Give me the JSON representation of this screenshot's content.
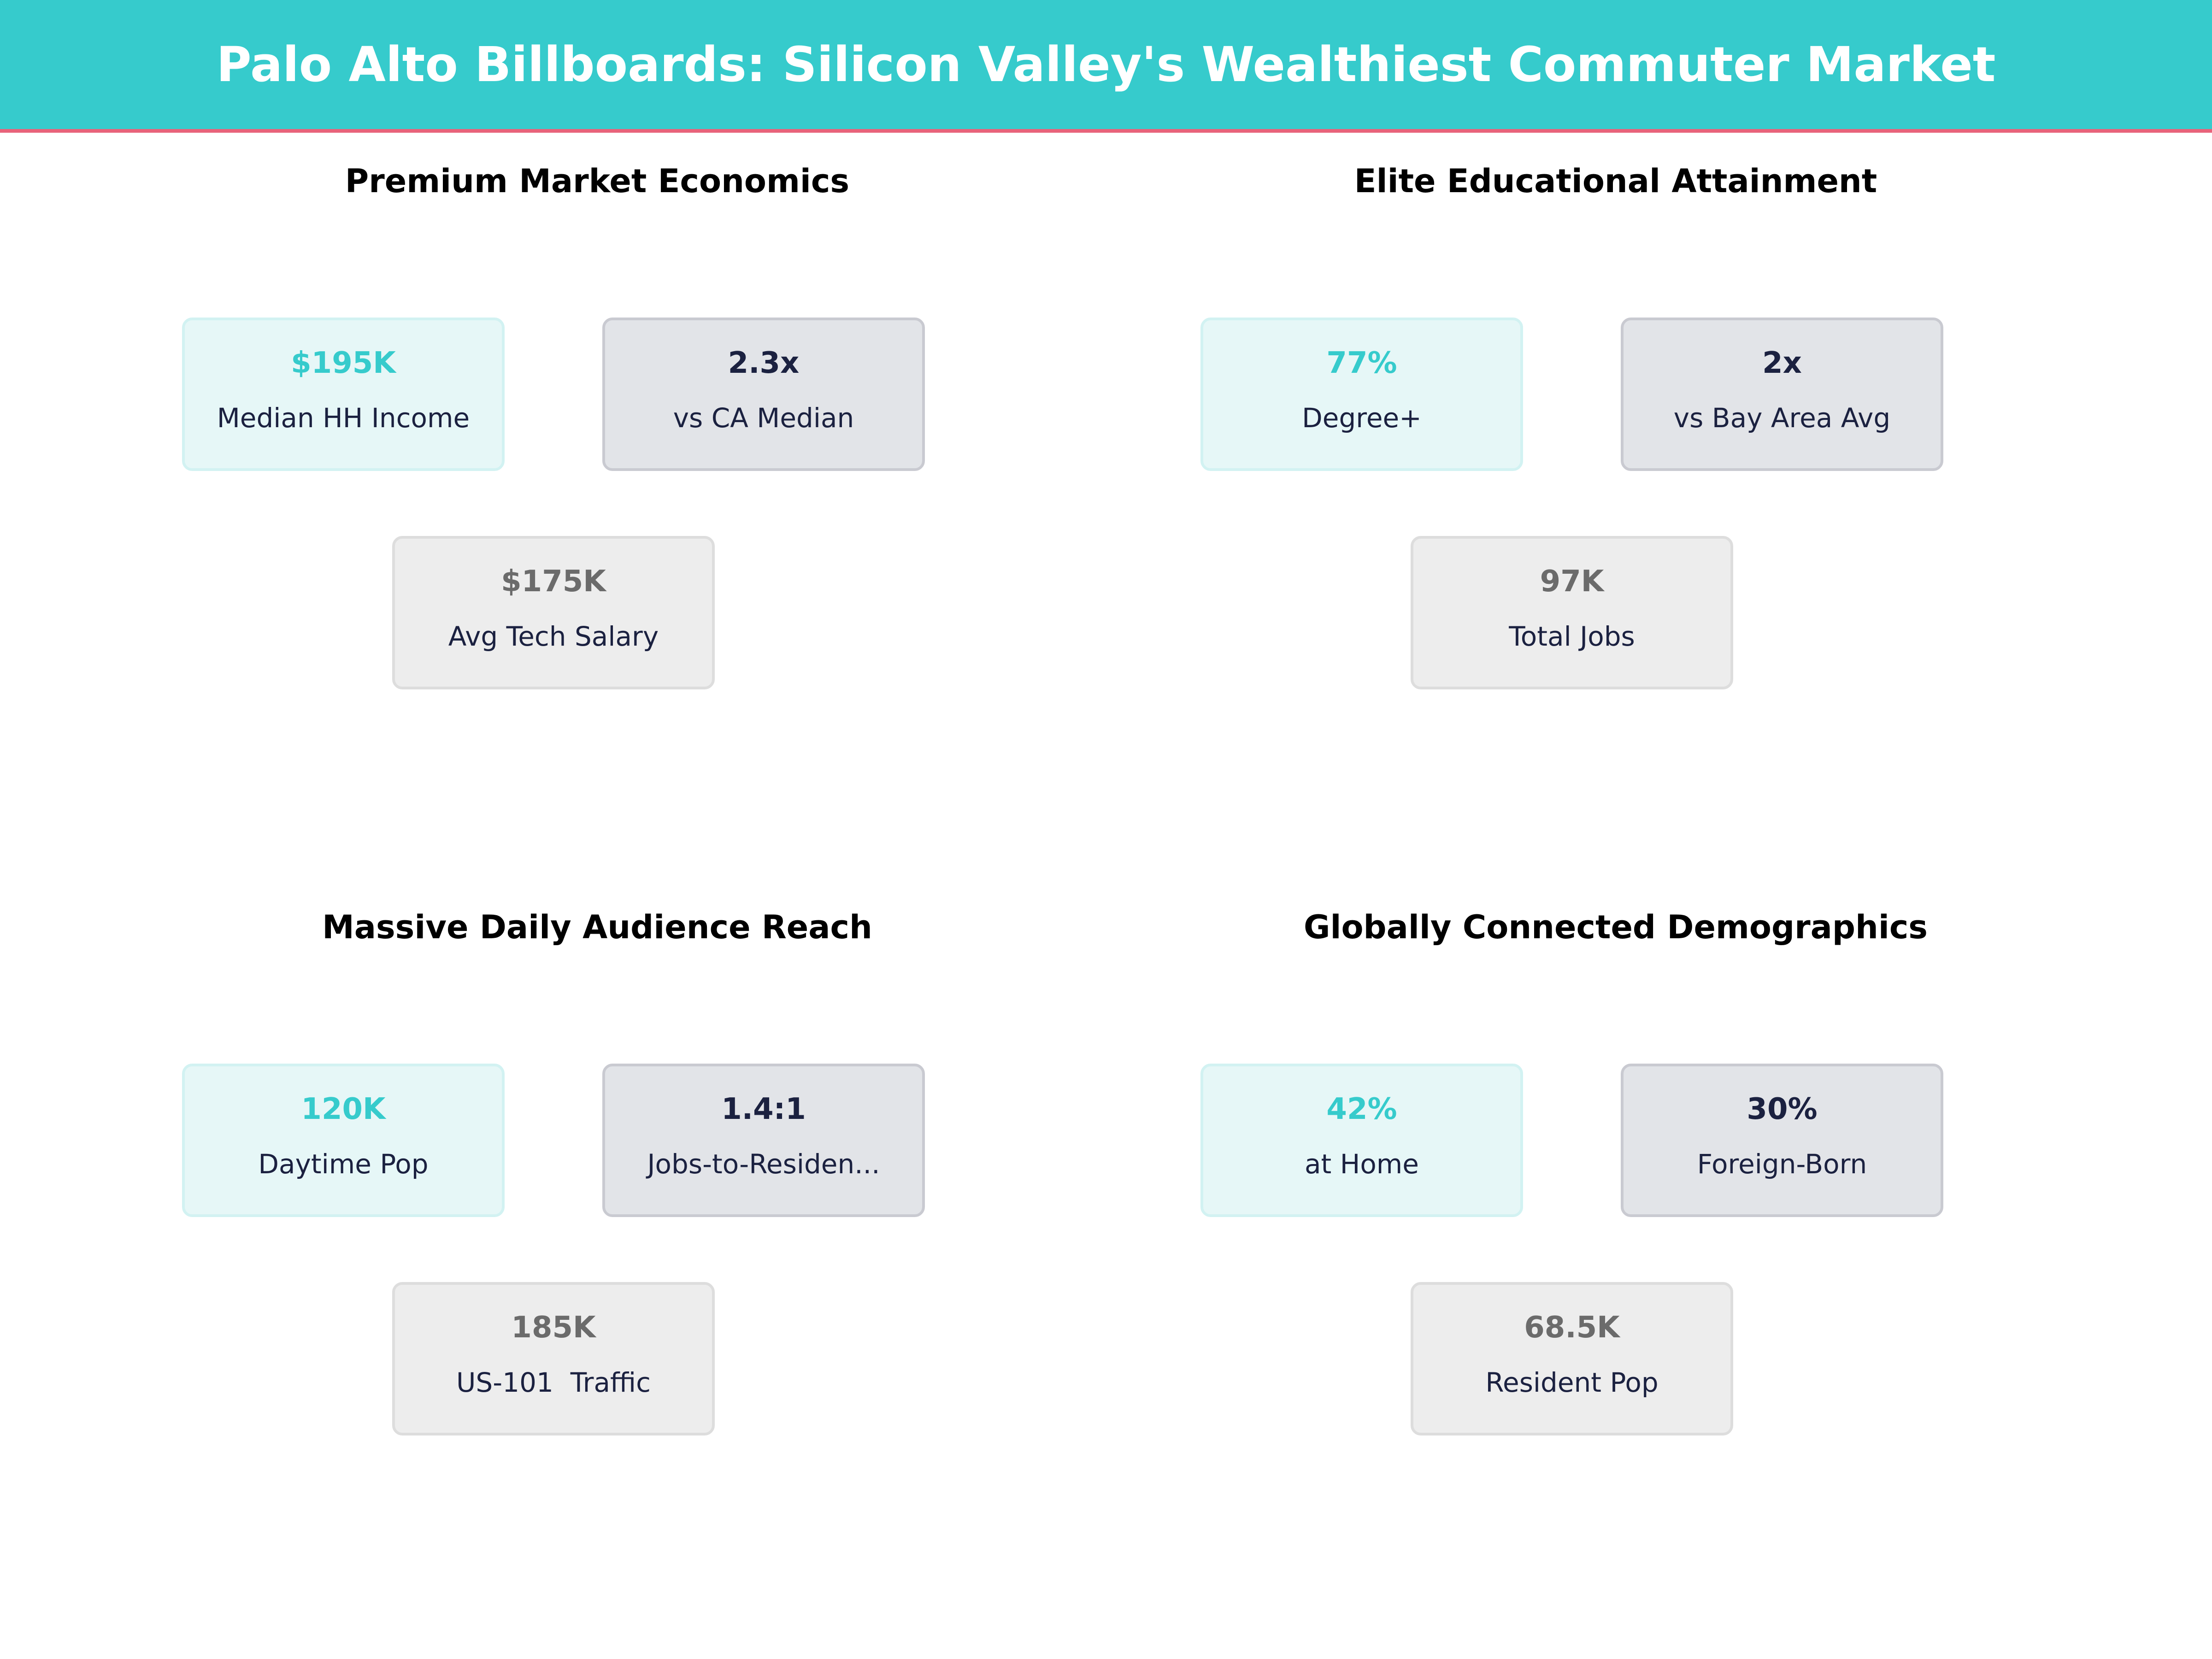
{
  "header": {
    "title": "Palo Alto Billboards: Silicon Valley's Wealthiest Commuter Market"
  },
  "colors": {
    "header_bg": "#36cbcc",
    "accent_line": "#e8637a",
    "primary_value": "#36cbcc",
    "secondary_value": "#1b2140",
    "tertiary_value": "#6b6b6b"
  },
  "chart_data": {
    "type": "table",
    "title": "Palo Alto Billboards: Silicon Valley's Wealthiest Commuter Market",
    "panels": [
      {
        "title": "Premium Market Economics",
        "cards": [
          {
            "value": "$195K",
            "label": "Median HH Income"
          },
          {
            "value": "2.3x",
            "label": "vs CA Median"
          },
          {
            "value": "$175K",
            "label": "Avg Tech Salary"
          }
        ]
      },
      {
        "title": "Elite Educational Attainment",
        "cards": [
          {
            "value": "77%",
            "label": "Degree+"
          },
          {
            "value": "2x",
            "label": "vs Bay Area Avg"
          },
          {
            "value": "97K",
            "label": "Total Jobs"
          }
        ]
      },
      {
        "title": "Massive Daily Audience Reach",
        "cards": [
          {
            "value": "120K",
            "label": "Daytime Pop"
          },
          {
            "value": "1.4:1",
            "label": "Jobs-to-Residen..."
          },
          {
            "value": "185K",
            "label": "US-101  Traffic"
          }
        ]
      },
      {
        "title": "Globally Connected Demographics",
        "cards": [
          {
            "value": "42%",
            "label": "at Home"
          },
          {
            "value": "30%",
            "label": "Foreign-Born"
          },
          {
            "value": "68.5K",
            "label": "Resident Pop"
          }
        ]
      }
    ]
  }
}
